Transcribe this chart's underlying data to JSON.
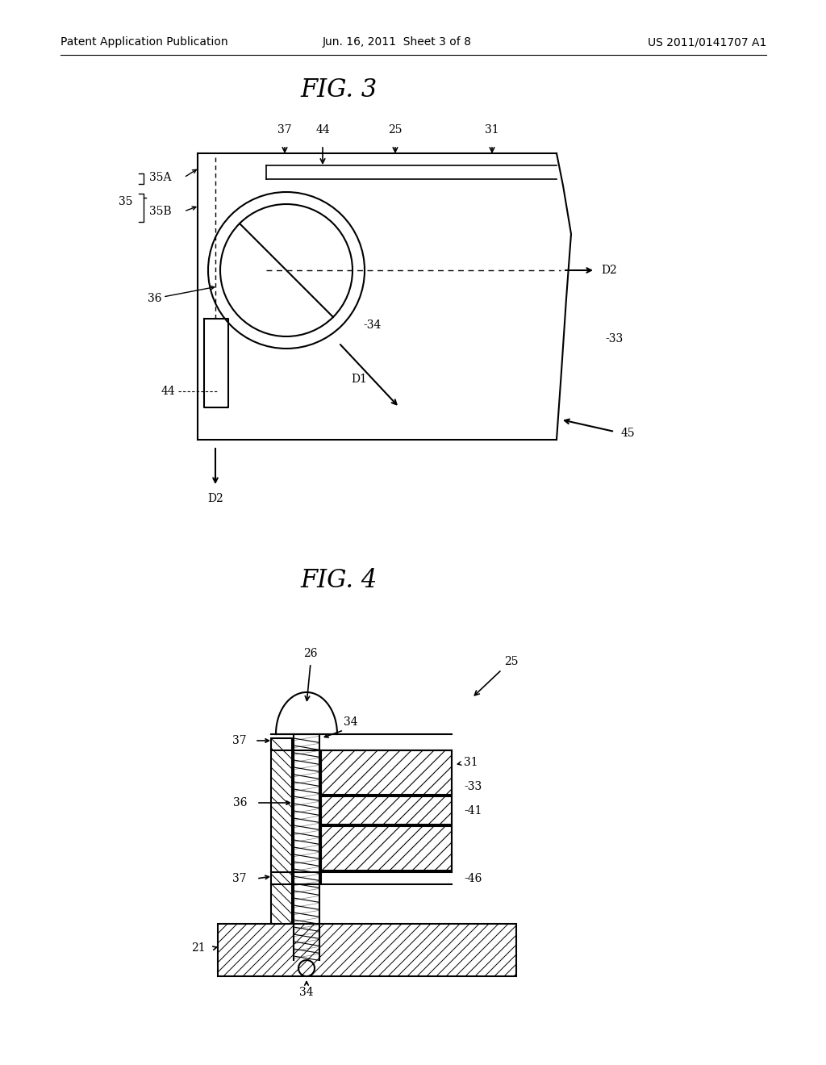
{
  "bg_color": "#ffffff",
  "header_left": "Patent Application Publication",
  "header_center": "Jun. 16, 2011  Sheet 3 of 8",
  "header_right": "US 2011/0141707 A1",
  "fig3_title": "FIG. 3",
  "fig4_title": "FIG. 4",
  "line_color": "#000000",
  "header_fontsize": 10,
  "title_fontsize": 22,
  "label_fontsize": 10
}
